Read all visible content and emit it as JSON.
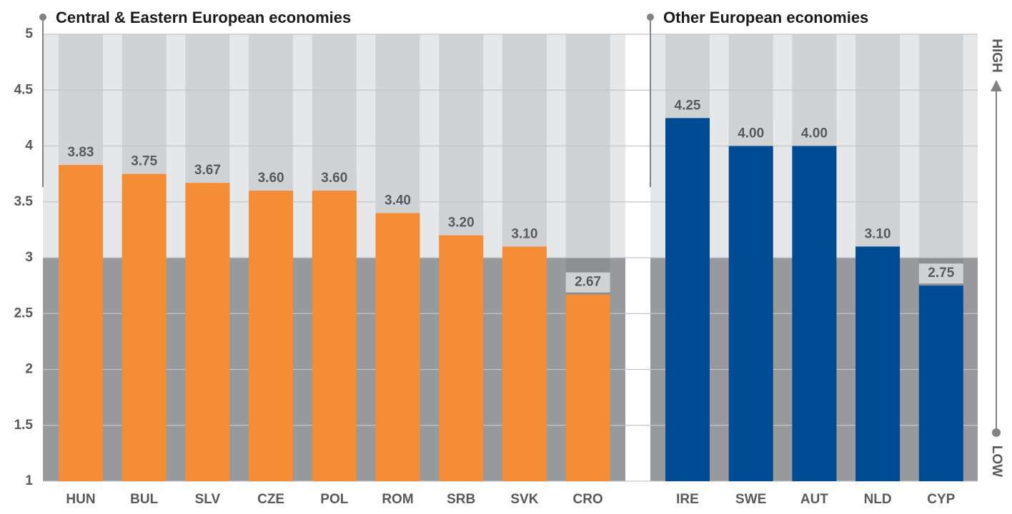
{
  "chart_data": {
    "type": "bar",
    "ylim": [
      1,
      5
    ],
    "yticks": [
      1,
      1.5,
      2,
      2.5,
      3,
      3.5,
      4,
      4.5,
      5
    ],
    "grid": true,
    "shade_below": 3,
    "high_label": "HIGH",
    "low_label": "LOW",
    "groups": [
      {
        "title": "Central & Eastern European economies",
        "color": "#f58d37",
        "categories": [
          "HUN",
          "BUL",
          "SLV",
          "CZE",
          "POL",
          "ROM",
          "SRB",
          "SVK",
          "CRO"
        ],
        "values": [
          3.83,
          3.75,
          3.67,
          3.6,
          3.6,
          3.4,
          3.2,
          3.1,
          2.67
        ],
        "value_labels": [
          "3.83",
          "3.75",
          "3.67",
          "3.60",
          "3.60",
          "3.40",
          "3.20",
          "3.10",
          "2.67"
        ]
      },
      {
        "title": "Other European economies",
        "color": "#004b93",
        "categories": [
          "IRE",
          "SWE",
          "AUT",
          "NLD",
          "CYP"
        ],
        "values": [
          4.25,
          4.0,
          4.0,
          3.1,
          2.75
        ],
        "value_labels": [
          "4.25",
          "4.00",
          "4.00",
          "3.10",
          "2.75"
        ]
      }
    ]
  }
}
